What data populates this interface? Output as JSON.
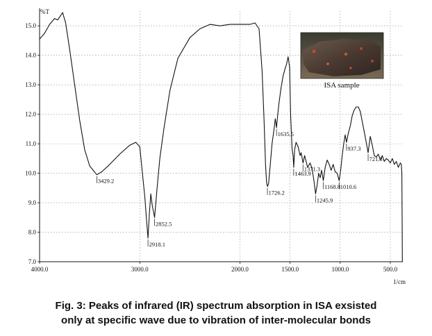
{
  "chart_data": {
    "type": "line",
    "ylabel": "%T",
    "xlabel": "1/cm",
    "xlim": [
      4000,
      375
    ],
    "ylim": [
      7.0,
      15.5
    ],
    "x_axis_reversed": true,
    "grid": true,
    "x_ticks": [
      4000,
      3000,
      2000,
      1500,
      1000,
      500
    ],
    "x_tick_labels": [
      "4000.0",
      "3000.0",
      "2000.0",
      "1500.0",
      "1000.0",
      "500.0"
    ],
    "y_ticks": [
      7,
      8,
      9,
      10,
      11,
      12,
      13,
      14,
      15
    ],
    "y_tick_labels": [
      "7.0",
      "8.0",
      "9.0",
      "10.0",
      "11.0",
      "12.0",
      "13.0",
      "14.0",
      "15.0"
    ],
    "series": [
      {
        "points": [
          [
            4000,
            14.55
          ],
          [
            3950,
            14.75
          ],
          [
            3900,
            15.05
          ],
          [
            3850,
            15.25
          ],
          [
            3820,
            15.2
          ],
          [
            3790,
            15.35
          ],
          [
            3770,
            15.45
          ],
          [
            3740,
            15.1
          ],
          [
            3700,
            14.2
          ],
          [
            3650,
            13.0
          ],
          [
            3600,
            11.8
          ],
          [
            3550,
            10.8
          ],
          [
            3500,
            10.25
          ],
          [
            3429.2,
            9.95
          ],
          [
            3380,
            10.05
          ],
          [
            3300,
            10.3
          ],
          [
            3200,
            10.65
          ],
          [
            3100,
            10.95
          ],
          [
            3040,
            11.05
          ],
          [
            3000,
            10.9
          ],
          [
            2980,
            10.2
          ],
          [
            2950,
            9.2
          ],
          [
            2935,
            8.5
          ],
          [
            2918.1,
            7.8
          ],
          [
            2905,
            8.6
          ],
          [
            2890,
            9.3
          ],
          [
            2875,
            8.9
          ],
          [
            2852.5,
            8.5
          ],
          [
            2830,
            9.4
          ],
          [
            2800,
            10.5
          ],
          [
            2760,
            11.5
          ],
          [
            2700,
            12.8
          ],
          [
            2620,
            13.9
          ],
          [
            2500,
            14.6
          ],
          [
            2400,
            14.9
          ],
          [
            2300,
            15.05
          ],
          [
            2200,
            15.0
          ],
          [
            2100,
            15.05
          ],
          [
            2000,
            15.05
          ],
          [
            1900,
            15.05
          ],
          [
            1850,
            15.1
          ],
          [
            1810,
            14.9
          ],
          [
            1780,
            13.5
          ],
          [
            1760,
            11.8
          ],
          [
            1745,
            10.3
          ],
          [
            1735,
            9.7
          ],
          [
            1726.2,
            9.55
          ],
          [
            1715,
            9.65
          ],
          [
            1700,
            10.2
          ],
          [
            1680,
            11.0
          ],
          [
            1660,
            11.5
          ],
          [
            1648,
            11.85
          ],
          [
            1635.5,
            11.55
          ],
          [
            1625,
            11.95
          ],
          [
            1610,
            12.4
          ],
          [
            1590,
            12.9
          ],
          [
            1570,
            13.3
          ],
          [
            1550,
            13.55
          ],
          [
            1535,
            13.7
          ],
          [
            1520,
            13.95
          ],
          [
            1505,
            13.6
          ],
          [
            1495,
            12.0
          ],
          [
            1480,
            10.8
          ],
          [
            1470,
            10.6
          ],
          [
            1463.9,
            10.2
          ],
          [
            1455,
            10.8
          ],
          [
            1440,
            11.05
          ],
          [
            1420,
            10.9
          ],
          [
            1400,
            10.6
          ],
          [
            1390,
            10.7
          ],
          [
            1371.3,
            10.35
          ],
          [
            1355,
            10.6
          ],
          [
            1340,
            10.4
          ],
          [
            1325,
            10.2
          ],
          [
            1300,
            10.35
          ],
          [
            1280,
            10.15
          ],
          [
            1260,
            9.7
          ],
          [
            1245.9,
            9.3
          ],
          [
            1230,
            9.6
          ],
          [
            1215,
            10.0
          ],
          [
            1200,
            9.85
          ],
          [
            1185,
            10.1
          ],
          [
            1168.8,
            9.75
          ],
          [
            1150,
            10.2
          ],
          [
            1130,
            10.45
          ],
          [
            1110,
            10.3
          ],
          [
            1090,
            10.1
          ],
          [
            1070,
            10.3
          ],
          [
            1050,
            10.05
          ],
          [
            1030,
            10.0
          ],
          [
            1010.6,
            9.75
          ],
          [
            995,
            10.1
          ],
          [
            980,
            10.6
          ],
          [
            965,
            11.0
          ],
          [
            950,
            11.3
          ],
          [
            937.3,
            11.05
          ],
          [
            920,
            11.35
          ],
          [
            900,
            11.6
          ],
          [
            880,
            11.95
          ],
          [
            860,
            12.15
          ],
          [
            840,
            12.25
          ],
          [
            820,
            12.25
          ],
          [
            800,
            12.1
          ],
          [
            780,
            11.75
          ],
          [
            760,
            11.4
          ],
          [
            740,
            11.05
          ],
          [
            721.3,
            10.7
          ],
          [
            710,
            11.0
          ],
          [
            700,
            11.25
          ],
          [
            680,
            10.95
          ],
          [
            660,
            10.6
          ],
          [
            640,
            10.55
          ],
          [
            620,
            10.65
          ],
          [
            600,
            10.45
          ],
          [
            580,
            10.6
          ],
          [
            560,
            10.4
          ],
          [
            540,
            10.5
          ],
          [
            520,
            10.45
          ],
          [
            500,
            10.35
          ],
          [
            480,
            10.5
          ],
          [
            460,
            10.3
          ],
          [
            440,
            10.4
          ],
          [
            420,
            10.2
          ],
          [
            400,
            10.35
          ],
          [
            390,
            10.3
          ],
          [
            385,
            10.0
          ],
          [
            382,
            8.5
          ],
          [
            380,
            7.0
          ]
        ]
      }
    ],
    "peaks": [
      {
        "x": 3429.2,
        "y": 9.95,
        "label": "3429.2"
      },
      {
        "x": 2918.1,
        "y": 7.8,
        "label": "2918.1"
      },
      {
        "x": 2852.5,
        "y": 8.5,
        "label": "2852.5"
      },
      {
        "x": 1726.2,
        "y": 9.55,
        "label": "1726.2"
      },
      {
        "x": 1635.5,
        "y": 11.55,
        "label": "1635.5"
      },
      {
        "x": 1463.9,
        "y": 10.2,
        "label": "1463.9"
      },
      {
        "x": 1371.3,
        "y": 10.35,
        "label": "1371.3"
      },
      {
        "x": 1245.9,
        "y": 9.3,
        "label": "1245.9"
      },
      {
        "x": 1168.8,
        "y": 9.75,
        "label": "1168.8"
      },
      {
        "x": 1010.6,
        "y": 9.75,
        "label": "1010.6"
      },
      {
        "x": 937.3,
        "y": 11.05,
        "label": "937.3"
      },
      {
        "x": 721.3,
        "y": 10.7,
        "label": "721.3"
      }
    ],
    "inset": {
      "label": "ISA sample"
    }
  },
  "caption": {
    "line1": "Fig. 3: Peaks of infrared (IR) spectrum absorption in ISA exsisted",
    "line2": "only at specific wave due to vibration of inter-molecular bonds"
  },
  "colors": {
    "line": "#111111",
    "grid": "#8a8a8a",
    "axis": "#111111"
  }
}
